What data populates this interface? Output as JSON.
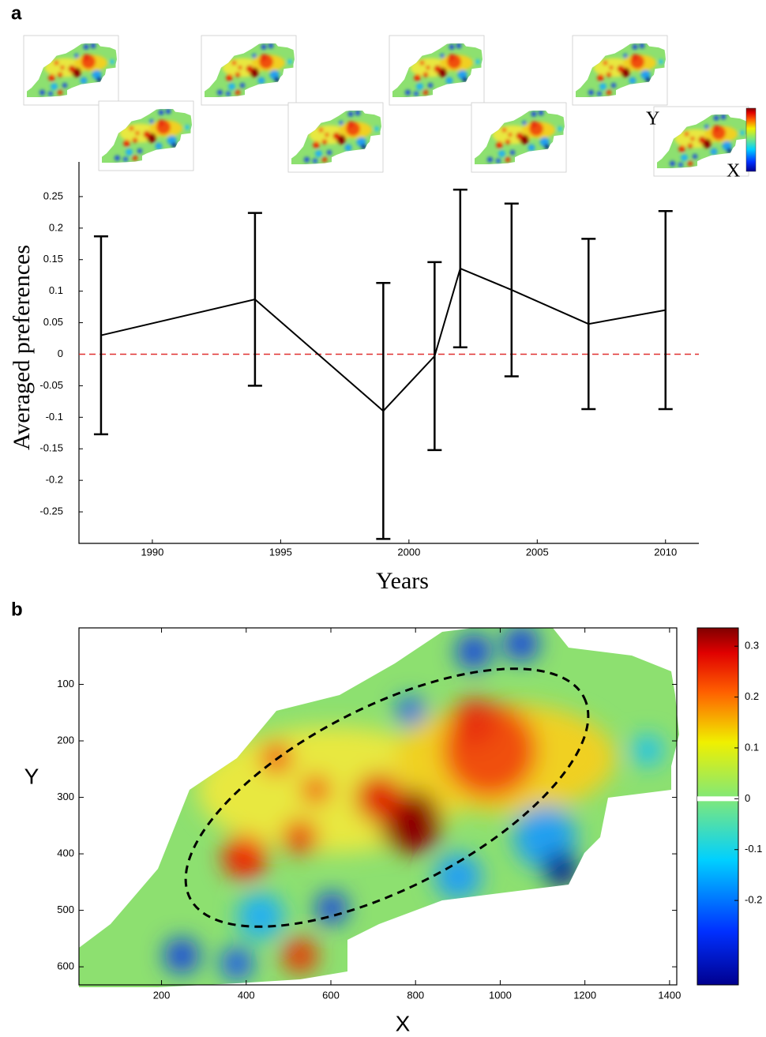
{
  "chart_data": [
    {
      "type": "errorline",
      "panel": "a",
      "x_label": "Years",
      "y_label": "Averaged preferences",
      "x": [
        1988,
        1994,
        1999,
        2001,
        2002,
        2004,
        2007,
        2010
      ],
      "values": [
        0.03,
        0.087,
        -0.09,
        -0.003,
        0.136,
        0.102,
        0.048,
        0.07
      ],
      "errors": [
        0.157,
        0.137,
        0.203,
        0.149,
        0.125,
        0.137,
        0.135,
        0.157
      ],
      "color": "#000000",
      "hline": 0,
      "hline_color": "#e03030",
      "xlim": [
        1987.14,
        2011.3
      ],
      "xticks": [
        1990,
        1995,
        2000,
        2005,
        2010
      ],
      "ylim": [
        -0.3,
        0.305
      ],
      "yticks": [
        -0.25,
        -0.2,
        -0.15,
        -0.1,
        -0.05,
        0,
        0.05,
        0.1,
        0.15,
        0.2,
        0.25
      ],
      "inset_labels": [
        "Y",
        "X"
      ]
    },
    {
      "type": "heatmap",
      "panel": "b",
      "x_label": "X",
      "y_label": "Y",
      "xlim": [
        5,
        1417
      ],
      "xticks": [
        200,
        400,
        600,
        800,
        1000,
        1200,
        1400
      ],
      "ylim": [
        632,
        0
      ],
      "yticks": [
        100,
        200,
        300,
        400,
        500,
        600
      ],
      "clim": [
        -0.366,
        0.336
      ],
      "cticks": [
        -0.2,
        -0.1,
        0,
        0.1,
        0.2,
        0.3
      ]
    }
  ]
}
